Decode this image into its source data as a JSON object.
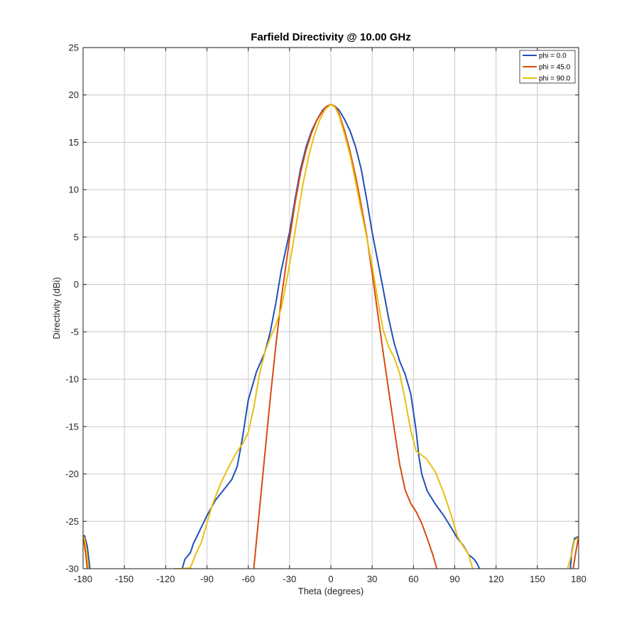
{
  "chart_data": {
    "type": "line",
    "title": "Farfield Directivity @ 10.00 GHz",
    "xlabel": "Theta (degrees)",
    "ylabel": "Directivity (dBi)",
    "xlim": [
      -180,
      180
    ],
    "ylim": [
      -30,
      25
    ],
    "xticks": [
      -180,
      -150,
      -120,
      -90,
      -60,
      -30,
      0,
      30,
      60,
      90,
      120,
      150,
      180
    ],
    "yticks": [
      25,
      20,
      15,
      10,
      5,
      0,
      -5,
      -10,
      -15,
      -20,
      -25,
      -30
    ],
    "grid": true,
    "legend_position": "top-right",
    "series": [
      {
        "name": "phi = 0.0",
        "color": "#2050b8",
        "segments": [
          [
            [
              -180,
              -26.6
            ],
            [
              -179,
              -26.5
            ],
            [
              -177,
              -27.6
            ],
            [
              -175,
              -30
            ]
          ],
          [
            [
              -108,
              -30
            ],
            [
              -106,
              -29
            ],
            [
              -102,
              -28.3
            ],
            [
              -100,
              -27.4
            ],
            [
              -96,
              -26.2
            ],
            [
              -90,
              -24.4
            ],
            [
              -84,
              -22.8
            ],
            [
              -78,
              -21.7
            ],
            [
              -72,
              -20.6
            ],
            [
              -68,
              -19.2
            ],
            [
              -64,
              -16.0
            ],
            [
              -60,
              -12.2
            ],
            [
              -54,
              -9.2
            ],
            [
              -48,
              -7.2
            ],
            [
              -44,
              -5.0
            ],
            [
              -40,
              -2.0
            ],
            [
              -36,
              1.5
            ],
            [
              -30,
              5.5
            ],
            [
              -26,
              9.0
            ],
            [
              -22,
              12.2
            ],
            [
              -18,
              14.5
            ],
            [
              -14,
              16.2
            ],
            [
              -10,
              17.4
            ],
            [
              -6,
              18.4
            ],
            [
              -3,
              18.8
            ],
            [
              0,
              19.0
            ],
            [
              3,
              18.8
            ],
            [
              6,
              18.4
            ],
            [
              10,
              17.4
            ],
            [
              14,
              16.2
            ],
            [
              18,
              14.5
            ],
            [
              22,
              12.2
            ],
            [
              26,
              9.0
            ],
            [
              30,
              5.5
            ],
            [
              34,
              2.5
            ],
            [
              38,
              -0.5
            ],
            [
              42,
              -3.6
            ],
            [
              46,
              -6.2
            ],
            [
              50,
              -8.1
            ],
            [
              54,
              -9.5
            ],
            [
              58,
              -11.5
            ],
            [
              62,
              -15.5
            ],
            [
              64,
              -18.2
            ],
            [
              66,
              -20.0
            ],
            [
              70,
              -21.8
            ],
            [
              76,
              -23.2
            ],
            [
              82,
              -24.4
            ],
            [
              88,
              -25.8
            ],
            [
              92,
              -26.8
            ],
            [
              96,
              -27.5
            ],
            [
              100,
              -28.5
            ],
            [
              104,
              -29.0
            ],
            [
              106,
              -29.4
            ],
            [
              108,
              -30
            ]
          ],
          [
            [
              174,
              -30
            ],
            [
              175,
              -28.2
            ],
            [
              177,
              -26.8
            ],
            [
              180,
              -26.6
            ]
          ]
        ]
      },
      {
        "name": "phi = 45.0",
        "color": "#d94a10",
        "segments": [
          [
            [
              -180,
              -26.6
            ],
            [
              -179.5,
              -27.0
            ],
            [
              -178,
              -28.5
            ],
            [
              -177,
              -30
            ]
          ],
          [
            [
              -56,
              -30
            ],
            [
              -52,
              -24.0
            ],
            [
              -48,
              -18.0
            ],
            [
              -44,
              -12.0
            ],
            [
              -40,
              -6.5
            ],
            [
              -36,
              -1.5
            ],
            [
              -30,
              4.8
            ],
            [
              -26,
              8.6
            ],
            [
              -22,
              11.8
            ],
            [
              -18,
              14.2
            ],
            [
              -14,
              16.0
            ],
            [
              -10,
              17.4
            ],
            [
              -6,
              18.3
            ],
            [
              -3,
              18.8
            ],
            [
              0,
              19.0
            ],
            [
              3,
              18.8
            ],
            [
              6,
              18.0
            ],
            [
              10,
              16.2
            ],
            [
              14,
              14.0
            ],
            [
              18,
              11.4
            ],
            [
              22,
              8.4
            ],
            [
              26,
              5.2
            ],
            [
              30,
              1.2
            ],
            [
              34,
              -3.0
            ],
            [
              38,
              -7.2
            ],
            [
              42,
              -11.2
            ],
            [
              46,
              -15.2
            ],
            [
              50,
              -19.0
            ],
            [
              54,
              -21.7
            ],
            [
              58,
              -23.1
            ],
            [
              62,
              -24.0
            ],
            [
              66,
              -25.2
            ],
            [
              70,
              -26.8
            ],
            [
              74,
              -28.5
            ],
            [
              77,
              -30
            ]
          ],
          [
            [
              176,
              -30
            ],
            [
              178,
              -28.2
            ],
            [
              180,
              -26.6
            ]
          ]
        ]
      },
      {
        "name": "phi = 90.0",
        "color": "#e8c010",
        "segments": [
          [
            [
              -180,
              -26.6
            ],
            [
              -179,
              -26.8
            ],
            [
              -177.5,
              -28.0
            ],
            [
              -176,
              -30
            ]
          ],
          [
            [
              -114,
              -30
            ],
            [
              -108,
              -30.0
            ],
            [
              -102,
              -29.9
            ],
            [
              -98,
              -28.4
            ],
            [
              -94,
              -27.2
            ],
            [
              -90,
              -25.2
            ],
            [
              -86,
              -23.2
            ],
            [
              -80,
              -21.0
            ],
            [
              -74,
              -19.2
            ],
            [
              -68,
              -17.6
            ],
            [
              -64,
              -16.8
            ],
            [
              -60,
              -15.6
            ],
            [
              -56,
              -13.0
            ],
            [
              -52,
              -9.6
            ],
            [
              -48,
              -7.2
            ],
            [
              -44,
              -5.6
            ],
            [
              -40,
              -4.3
            ],
            [
              -36,
              -2.5
            ],
            [
              -32,
              0.5
            ],
            [
              -28,
              3.8
            ],
            [
              -24,
              7.4
            ],
            [
              -20,
              10.8
            ],
            [
              -16,
              13.6
            ],
            [
              -12,
              15.8
            ],
            [
              -8,
              17.4
            ],
            [
              -4,
              18.5
            ],
            [
              0,
              19.0
            ],
            [
              3,
              18.7
            ],
            [
              6,
              17.8
            ],
            [
              10,
              15.8
            ],
            [
              14,
              13.6
            ],
            [
              18,
              10.8
            ],
            [
              22,
              7.8
            ],
            [
              26,
              5.0
            ],
            [
              30,
              2.0
            ],
            [
              34,
              -1.6
            ],
            [
              38,
              -4.8
            ],
            [
              42,
              -6.6
            ],
            [
              46,
              -7.7
            ],
            [
              50,
              -9.4
            ],
            [
              54,
              -12.2
            ],
            [
              58,
              -15.4
            ],
            [
              62,
              -17.6
            ],
            [
              66,
              -18.0
            ],
            [
              70,
              -18.5
            ],
            [
              76,
              -19.8
            ],
            [
              82,
              -22.0
            ],
            [
              88,
              -24.6
            ],
            [
              92,
              -26.6
            ],
            [
              96,
              -27.6
            ],
            [
              100,
              -28.5
            ],
            [
              103,
              -30
            ]
          ],
          [
            [
              172,
              -30
            ],
            [
              175,
              -28.4
            ],
            [
              177,
              -27.0
            ],
            [
              180,
              -26.7
            ]
          ]
        ]
      }
    ]
  }
}
